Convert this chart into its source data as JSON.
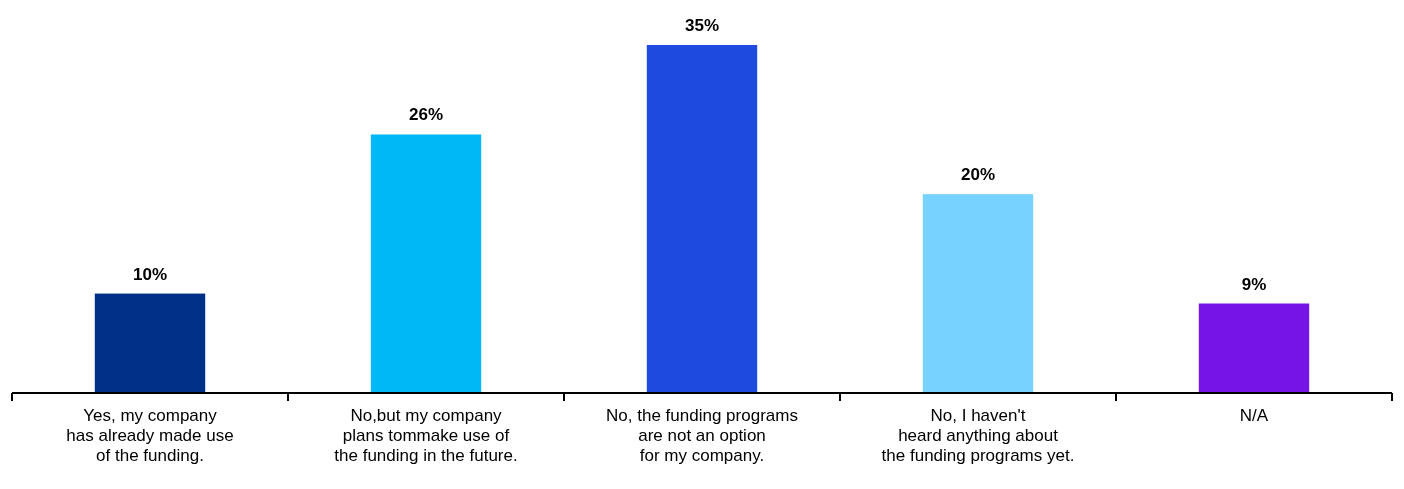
{
  "chart_data": {
    "type": "bar",
    "categories": [
      "Yes, my company\nhas already made use\nof the funding.",
      "No,but my company\nplans tommake use of\nthe funding in the future.",
      "No, the funding programs\nare not an option\nfor my company.",
      "No, I haven't\nheard anything about\nthe funding programs yet.",
      "N/A"
    ],
    "values": [
      10,
      26,
      35,
      20,
      9
    ],
    "colors": [
      "#003087",
      "#00b8f5",
      "#1f4ae0",
      "#78d2ff",
      "#7414e6"
    ],
    "value_labels": [
      "10%",
      "26%",
      "35%",
      "20%",
      "9%"
    ]
  }
}
